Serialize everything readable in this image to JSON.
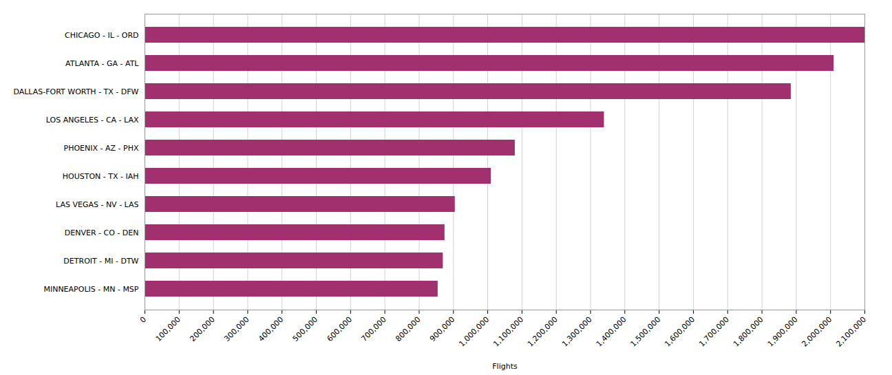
{
  "chart_data": {
    "type": "bar",
    "orientation": "horizontal",
    "categories": [
      "MINNEAPOLIS - MN - MSP",
      "DETROIT - MI - DTW",
      "DENVER - CO - DEN",
      "LAS VEGAS - NV - LAS",
      "HOUSTON - TX - IAH",
      "PHOENIX - AZ - PHX",
      "LOS ANGELES - CA - LAX",
      "DALLAS-FORT WORTH - TX - DFW",
      "ATLANTA - GA - ATL",
      "CHICAGO - IL - ORD"
    ],
    "values": [
      855000,
      870000,
      875000,
      905000,
      1010000,
      1080000,
      1340000,
      1885000,
      2010000,
      2100000
    ],
    "color": "#a0306e",
    "xlabel": "Flights",
    "xlim": [
      0,
      2100000
    ],
    "xticks": [
      0,
      {
        "value": 100000,
        "label": "100,000"
      },
      {
        "value": 200000,
        "label": "200,000"
      },
      {
        "value": 300000,
        "label": "300,000"
      },
      {
        "value": 400000,
        "label": "400,000"
      },
      {
        "value": 500000,
        "label": "500,000"
      },
      {
        "value": 600000,
        "label": "600,000"
      },
      {
        "value": 700000,
        "label": "700,000"
      },
      {
        "value": 800000,
        "label": "800,000"
      },
      {
        "value": 900000,
        "label": "900,000"
      },
      {
        "value": 1000000,
        "label": "1,000,000"
      },
      {
        "value": 1100000,
        "label": "1,100,000"
      },
      {
        "value": 1200000,
        "label": "1,200,000"
      },
      {
        "value": 1300000,
        "label": "1,300,000"
      },
      {
        "value": 1400000,
        "label": "1,400,000"
      },
      {
        "value": 1500000,
        "label": "1,500,000"
      },
      {
        "value": 1600000,
        "label": "1,600,000"
      },
      {
        "value": 1700000,
        "label": "1,700,000"
      },
      {
        "value": 1800000,
        "label": "1,800,000"
      },
      {
        "value": 1900000,
        "label": "1,900,000"
      },
      {
        "value": 2000000,
        "label": "2,000,000"
      },
      {
        "value": 2100000,
        "label": "2,100,000"
      }
    ],
    "grid": true
  }
}
